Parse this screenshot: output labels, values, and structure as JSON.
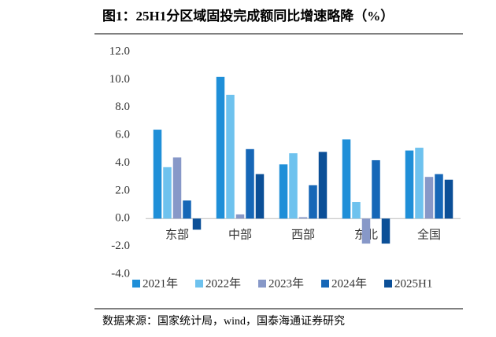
{
  "chart_data": {
    "type": "bar",
    "title": "图1：25H1分区域固投完成额同比增速略降（%）",
    "source": "数据来源：国家统计局，wind，国泰海通证券研究",
    "categories": [
      "东部",
      "中部",
      "西部",
      "东北",
      "全国"
    ],
    "series": [
      {
        "name": "2021年",
        "color": "#1f8fd8",
        "values": [
          6.4,
          10.2,
          3.9,
          5.7,
          4.9
        ]
      },
      {
        "name": "2022年",
        "color": "#6ec2ee",
        "values": [
          3.7,
          8.9,
          4.7,
          1.2,
          5.1
        ]
      },
      {
        "name": "2023年",
        "color": "#8798c8",
        "values": [
          4.4,
          0.3,
          0.1,
          -1.8,
          3.0
        ]
      },
      {
        "name": "2024年",
        "color": "#1667b7",
        "values": [
          1.3,
          5.0,
          2.4,
          4.2,
          3.2
        ]
      },
      {
        "name": "2025H1",
        "color": "#0b4f97",
        "values": [
          -0.8,
          3.2,
          4.8,
          -1.8,
          2.8
        ]
      }
    ],
    "ylim": [
      -4,
      12
    ],
    "yticks": [
      {
        "value": -4,
        "label": "-4.0"
      },
      {
        "value": -2,
        "label": "-2.0"
      },
      {
        "value": 0,
        "label": "0.0"
      },
      {
        "value": 2,
        "label": "2.0"
      },
      {
        "value": 4,
        "label": "4.0"
      },
      {
        "value": 6,
        "label": "6.0"
      },
      {
        "value": 8,
        "label": "8.0"
      },
      {
        "value": 10,
        "label": "10.0"
      },
      {
        "value": 12,
        "label": "12.0"
      }
    ],
    "legend": "bottom"
  }
}
